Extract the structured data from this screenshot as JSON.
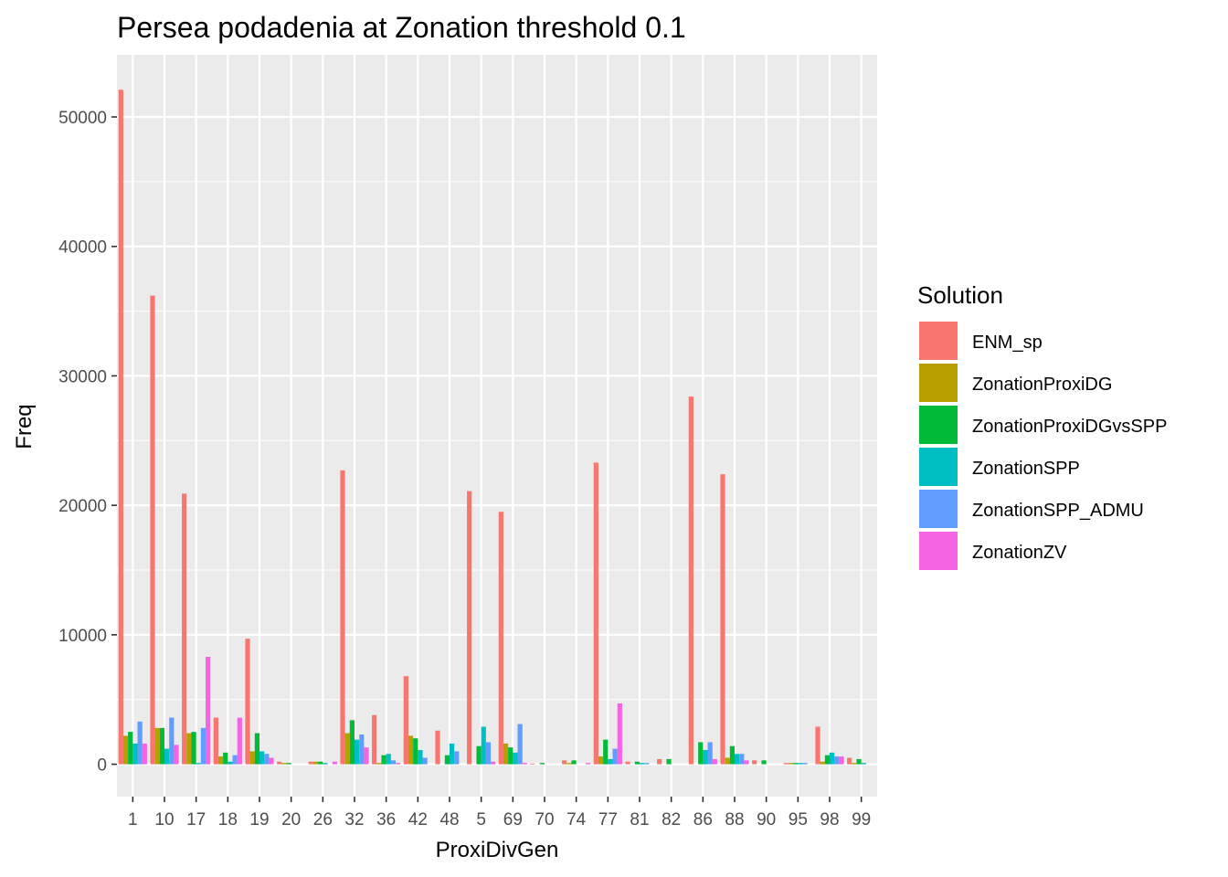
{
  "chart_data": {
    "type": "bar",
    "title": "Persea podadenia at Zonation threshold 0.1",
    "xlabel": "ProxiDivGen",
    "ylabel": "Freq",
    "ylim": [
      -2500,
      54800
    ],
    "yticks": [
      0,
      10000,
      20000,
      30000,
      40000,
      50000
    ],
    "grid": true,
    "legend_position": "right",
    "legend_title": "Solution",
    "categories": [
      "1",
      "10",
      "17",
      "18",
      "19",
      "20",
      "26",
      "32",
      "36",
      "42",
      "48",
      "5",
      "69",
      "70",
      "74",
      "77",
      "81",
      "82",
      "86",
      "88",
      "90",
      "95",
      "98",
      "99"
    ],
    "series": [
      {
        "name": "ENM_sp",
        "color": "#F8766D",
        "values": [
          52100,
          36200,
          20900,
          3600,
          9700,
          200,
          200,
          22700,
          3800,
          6800,
          2600,
          21100,
          19500,
          50,
          300,
          23300,
          200,
          400,
          28400,
          22400,
          300,
          100,
          2900,
          500
        ]
      },
      {
        "name": "ZonationProxiDG",
        "color": "#B79F00",
        "values": [
          2200,
          2800,
          2400,
          600,
          1000,
          100,
          200,
          2400,
          100,
          2200,
          0,
          0,
          1600,
          0,
          100,
          600,
          0,
          0,
          0,
          500,
          0,
          100,
          200,
          100
        ]
      },
      {
        "name": "ZonationProxiDGvsSPP",
        "color": "#00BA38",
        "values": [
          2500,
          2800,
          2500,
          900,
          2400,
          100,
          200,
          3400,
          700,
          2000,
          700,
          1400,
          1300,
          100,
          300,
          1900,
          200,
          400,
          1700,
          1400,
          300,
          100,
          700,
          400
        ]
      },
      {
        "name": "ZonationSPP",
        "color": "#00BFC4",
        "values": [
          1600,
          1200,
          100,
          200,
          1000,
          0,
          100,
          1900,
          800,
          1100,
          1600,
          2900,
          900,
          0,
          0,
          400,
          100,
          0,
          1100,
          800,
          0,
          100,
          900,
          100
        ]
      },
      {
        "name": "ZonationSPP_ADMU",
        "color": "#619CFF",
        "values": [
          3300,
          3600,
          2800,
          700,
          800,
          0,
          0,
          2300,
          300,
          500,
          1000,
          1700,
          3100,
          0,
          0,
          1200,
          100,
          0,
          1700,
          800,
          0,
          100,
          600,
          0
        ]
      },
      {
        "name": "ZonationZV",
        "color": "#F564E3",
        "values": [
          1600,
          1500,
          8300,
          3600,
          500,
          0,
          200,
          1300,
          100,
          0,
          0,
          200,
          100,
          0,
          100,
          4700,
          0,
          0,
          400,
          300,
          0,
          0,
          600,
          0
        ]
      }
    ]
  }
}
